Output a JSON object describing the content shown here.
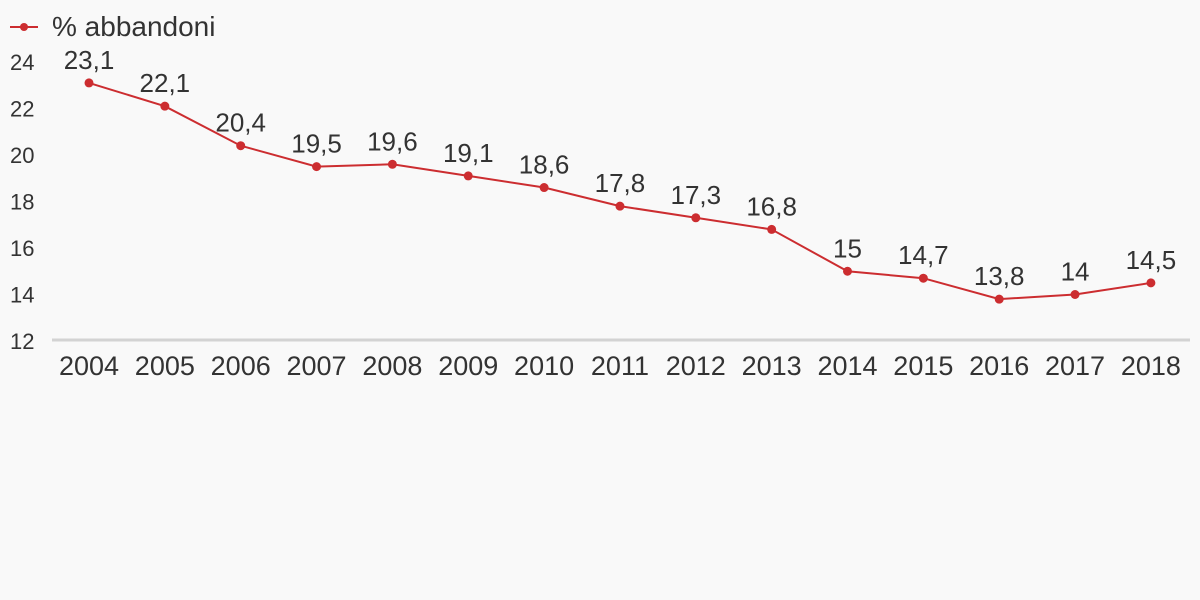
{
  "colors": {
    "series": "#cc2d30",
    "axis": "#d3d3d3",
    "text": "#333333",
    "background": "#f9f9f9"
  },
  "chart_data": {
    "type": "line",
    "title": "",
    "xlabel": "",
    "ylabel": "",
    "categories": [
      "2004",
      "2005",
      "2006",
      "2007",
      "2008",
      "2009",
      "2010",
      "2011",
      "2012",
      "2013",
      "2014",
      "2015",
      "2016",
      "2017",
      "2018"
    ],
    "series": [
      {
        "name": "% abbandoni",
        "values": [
          23.1,
          22.1,
          20.4,
          19.5,
          19.6,
          19.1,
          18.6,
          17.8,
          17.3,
          16.8,
          15,
          14.7,
          13.8,
          14,
          14.5
        ],
        "labels": [
          "23,1",
          "22,1",
          "20,4",
          "19,5",
          "19,6",
          "19,1",
          "18,6",
          "17,8",
          "17,3",
          "16,8",
          "15",
          "14,7",
          "13,8",
          "14",
          "14,5"
        ]
      }
    ],
    "ylim": [
      12,
      24
    ],
    "yticks": [
      "12",
      "14",
      "16",
      "18",
      "20",
      "22",
      "24"
    ],
    "grid": false,
    "legend_position": "top-left"
  }
}
